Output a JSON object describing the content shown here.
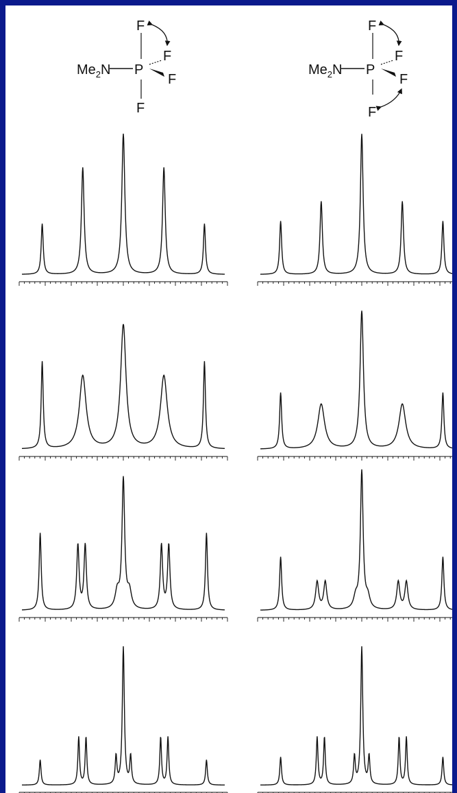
{
  "colors": {
    "frame": "#0b1a8c",
    "panel": "#ffffff",
    "ink": "#111111"
  },
  "structures": [
    {
      "group": "Me",
      "group_subscript": "2",
      "group_tail": "N",
      "center": "P",
      "atoms": [
        "F",
        "F",
        "F",
        "F"
      ],
      "exchange": "axial-equatorial"
    },
    {
      "group": "Me",
      "group_subscript": "2",
      "group_tail": "N",
      "center": "P",
      "atoms": [
        "F",
        "F",
        "F",
        "F"
      ],
      "exchange": "axial-equatorial, both axial positions"
    }
  ],
  "chart_data": {
    "type": "line",
    "description_rows": 4,
    "columns": 2,
    "panels": [
      {
        "col": 0,
        "row": 0,
        "peaks": [
          {
            "x": -2,
            "height": 0.36,
            "width": 0.03
          },
          {
            "x": -1,
            "height": 0.76,
            "width": 0.04
          },
          {
            "x": 0,
            "height": 1.0,
            "width": 0.045
          },
          {
            "x": 1,
            "height": 0.76,
            "width": 0.04
          },
          {
            "x": 2,
            "height": 0.36,
            "width": 0.03
          }
        ]
      },
      {
        "col": 1,
        "row": 0,
        "peaks": [
          {
            "x": -2,
            "height": 0.38,
            "width": 0.03
          },
          {
            "x": -1,
            "height": 0.52,
            "width": 0.035
          },
          {
            "x": 0,
            "height": 1.0,
            "width": 0.04
          },
          {
            "x": 1,
            "height": 0.52,
            "width": 0.035
          },
          {
            "x": 2,
            "height": 0.38,
            "width": 0.03
          }
        ]
      },
      {
        "col": 0,
        "row": 1,
        "peaks": [
          {
            "x": -2,
            "height": 0.62,
            "width": 0.03
          },
          {
            "x": -1,
            "height": 0.52,
            "width": 0.1
          },
          {
            "x": 0,
            "height": 0.88,
            "width": 0.08
          },
          {
            "x": 1,
            "height": 0.52,
            "width": 0.1
          },
          {
            "x": 2,
            "height": 0.62,
            "width": 0.03
          }
        ]
      },
      {
        "col": 1,
        "row": 1,
        "peaks": [
          {
            "x": -2,
            "height": 0.4,
            "width": 0.03
          },
          {
            "x": -1,
            "height": 0.32,
            "width": 0.1
          },
          {
            "x": 0,
            "height": 0.98,
            "width": 0.05
          },
          {
            "x": 1,
            "height": 0.32,
            "width": 0.1
          },
          {
            "x": 2,
            "height": 0.4,
            "width": 0.03
          }
        ]
      },
      {
        "col": 0,
        "row": 2,
        "peaks": [
          {
            "x": -2.05,
            "height": 0.55,
            "width": 0.03
          },
          {
            "x": -1.12,
            "height": 0.46,
            "width": 0.035
          },
          {
            "x": -0.94,
            "height": 0.46,
            "width": 0.035
          },
          {
            "x": -0.15,
            "height": 0.12,
            "width": 0.06
          },
          {
            "x": 0,
            "height": 0.92,
            "width": 0.04
          },
          {
            "x": 0.15,
            "height": 0.12,
            "width": 0.06
          },
          {
            "x": 0.94,
            "height": 0.46,
            "width": 0.035
          },
          {
            "x": 1.12,
            "height": 0.46,
            "width": 0.035
          },
          {
            "x": 2.05,
            "height": 0.55,
            "width": 0.03
          }
        ]
      },
      {
        "col": 1,
        "row": 2,
        "peaks": [
          {
            "x": -2,
            "height": 0.38,
            "width": 0.03
          },
          {
            "x": -1.1,
            "height": 0.2,
            "width": 0.045
          },
          {
            "x": -0.9,
            "height": 0.2,
            "width": 0.045
          },
          {
            "x": -0.15,
            "height": 0.08,
            "width": 0.06
          },
          {
            "x": 0,
            "height": 0.98,
            "width": 0.04
          },
          {
            "x": 0.15,
            "height": 0.08,
            "width": 0.06
          },
          {
            "x": 0.9,
            "height": 0.2,
            "width": 0.045
          },
          {
            "x": 1.1,
            "height": 0.2,
            "width": 0.045
          },
          {
            "x": 2,
            "height": 0.38,
            "width": 0.03
          }
        ]
      },
      {
        "col": 0,
        "row": 3,
        "peaks": [
          {
            "x": -2.05,
            "height": 0.18,
            "width": 0.025
          },
          {
            "x": -1.1,
            "height": 0.34,
            "width": 0.025
          },
          {
            "x": -0.92,
            "height": 0.34,
            "width": 0.025
          },
          {
            "x": -0.18,
            "height": 0.2,
            "width": 0.025
          },
          {
            "x": 0,
            "height": 0.98,
            "width": 0.03
          },
          {
            "x": 0.18,
            "height": 0.2,
            "width": 0.025
          },
          {
            "x": 0.92,
            "height": 0.34,
            "width": 0.025
          },
          {
            "x": 1.1,
            "height": 0.34,
            "width": 0.025
          },
          {
            "x": 2.05,
            "height": 0.18,
            "width": 0.025
          }
        ]
      },
      {
        "col": 1,
        "row": 3,
        "peaks": [
          {
            "x": -2,
            "height": 0.2,
            "width": 0.025
          },
          {
            "x": -1.1,
            "height": 0.34,
            "width": 0.025
          },
          {
            "x": -0.92,
            "height": 0.34,
            "width": 0.025
          },
          {
            "x": -0.18,
            "height": 0.2,
            "width": 0.025
          },
          {
            "x": 0,
            "height": 0.98,
            "width": 0.03
          },
          {
            "x": 0.18,
            "height": 0.2,
            "width": 0.025
          },
          {
            "x": 0.92,
            "height": 0.34,
            "width": 0.025
          },
          {
            "x": 1.1,
            "height": 0.34,
            "width": 0.025
          },
          {
            "x": 2,
            "height": 0.2,
            "width": 0.025
          }
        ]
      }
    ]
  }
}
